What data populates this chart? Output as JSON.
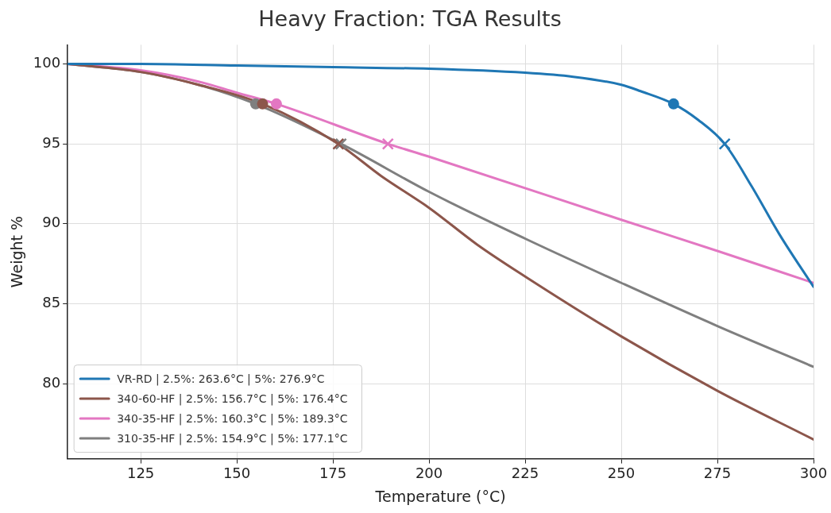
{
  "chart_data": {
    "type": "line",
    "title": "Heavy Fraction: TGA Results",
    "xlabel": "Temperature (°C)",
    "ylabel": "Weight %",
    "xlim": [
      106,
      300
    ],
    "xticks": [
      125,
      150,
      175,
      200,
      225,
      250,
      275,
      300
    ],
    "ylim": [
      75.3,
      101.2
    ],
    "yticks": [
      80,
      85,
      90,
      95,
      100
    ],
    "grid": true,
    "legend": "bottom left",
    "marker": "none",
    "line_style": "solid",
    "series": [
      {
        "name": "VR-RD | 2.5%: 263.6°C | 5%: 276.9°C",
        "color": "#1f77b4",
        "x": [
          106,
          125,
          150,
          175,
          200,
          225,
          237.5,
          250,
          255,
          263.6,
          270,
          276.9,
          283.9,
          291.1,
          300
        ],
        "values": [
          100,
          100,
          99.9,
          99.8,
          99.7,
          99.45,
          99.2,
          98.7,
          98.3,
          97.5,
          96.5,
          95,
          92.35,
          89.35,
          86.05
        ]
      },
      {
        "name": "340-60-HF | 2.5%: 156.7°C | 5%: 176.4°C",
        "color": "#8c564b",
        "x": [
          106,
          125,
          140,
          156.7,
          176.4,
          187.5,
          200,
          212.5,
          225,
          250,
          275,
          300
        ],
        "values": [
          100,
          99.5,
          98.7,
          97.5,
          95,
          93.0,
          91.0,
          88.7,
          86.7,
          82.95,
          79.55,
          76.5
        ]
      },
      {
        "name": "340-35-HF | 2.5%: 160.3°C | 5%: 189.3°C",
        "color": "#e377c2",
        "x": [
          106,
          125,
          140,
          150,
          160.3,
          189.3,
          200,
          250,
          275,
          300
        ],
        "values": [
          100,
          99.6,
          98.9,
          98.2,
          97.5,
          95,
          94.2,
          90.25,
          88.3,
          86.3
        ]
      },
      {
        "name": "310-35-HF | 2.5%: 154.9°C | 5%: 177.1°C",
        "color": "#7f7f7f",
        "x": [
          106,
          125,
          140,
          154.9,
          177.1,
          200,
          225,
          250,
          275,
          300
        ],
        "values": [
          100,
          99.5,
          98.7,
          97.5,
          95,
          92.0,
          89.07,
          86.3,
          83.6,
          81.05
        ]
      },
      {
        "type": "scatter",
        "marker": "circle",
        "color": "#1f77b4",
        "x": [
          263.6
        ],
        "values": [
          97.5
        ]
      },
      {
        "type": "scatter",
        "marker": "cross",
        "color": "#1f77b4",
        "x": [
          276.9
        ],
        "values": [
          95
        ]
      },
      {
        "type": "scatter",
        "marker": "circle",
        "color": "#8c564b",
        "x": [
          156.7
        ],
        "values": [
          97.5
        ]
      },
      {
        "type": "scatter",
        "marker": "cross",
        "color": "#8c564b",
        "x": [
          176.4
        ],
        "values": [
          95
        ]
      },
      {
        "type": "scatter",
        "marker": "circle",
        "color": "#e377c2",
        "x": [
          160.3
        ],
        "values": [
          97.5
        ]
      },
      {
        "type": "scatter",
        "marker": "cross",
        "color": "#e377c2",
        "x": [
          189.3
        ],
        "values": [
          95
        ]
      },
      {
        "type": "scatter",
        "marker": "circle",
        "color": "#7f7f7f",
        "x": [
          154.9
        ],
        "values": [
          97.5
        ]
      },
      {
        "type": "scatter",
        "marker": "cross",
        "color": "#7f7f7f",
        "x": [
          177.1
        ],
        "values": [
          95
        ]
      }
    ]
  }
}
